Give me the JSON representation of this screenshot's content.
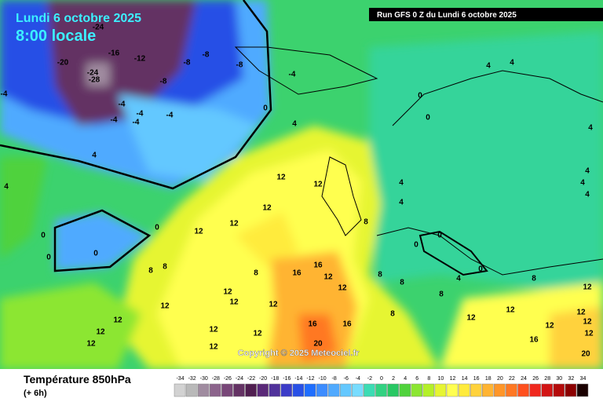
{
  "header": {
    "date": "Lundi 6 octobre 2025",
    "time": "8:00 locale",
    "run": "Run GFS 0 Z du Lundi 6 octobre 2025"
  },
  "copyright": "Copyright © 2025 Meteociel.fr",
  "legend": {
    "title": "Température 850hPa",
    "subtitle": "(+ 6h)",
    "scale": [
      -34,
      -32,
      -30,
      -28,
      -26,
      -24,
      -22,
      -20,
      -18,
      -16,
      -14,
      -12,
      -10,
      -8,
      -6,
      -4,
      -2,
      0,
      2,
      4,
      6,
      8,
      10,
      12,
      14,
      16,
      18,
      20,
      22,
      24,
      26,
      28,
      30,
      32,
      34
    ],
    "colors": [
      "#d2d2d2",
      "#b9b9b9",
      "#a08ca0",
      "#8c648c",
      "#784678",
      "#643264",
      "#501e50",
      "#5a2878",
      "#50329b",
      "#3c3cc8",
      "#2850e6",
      "#1e6eff",
      "#3c8cff",
      "#50aaff",
      "#64c8ff",
      "#78dcff",
      "#3cdcb4",
      "#32d282",
      "#28c864",
      "#50d23c",
      "#8ce632",
      "#b4f028",
      "#e6f532",
      "#ffff50",
      "#ffeb3c",
      "#ffd23c",
      "#ffb432",
      "#ff9628",
      "#ff7823",
      "#ff501e",
      "#f0281e",
      "#d21414",
      "#b40a0a",
      "#8c0000",
      "#1a0000"
    ]
  },
  "contour_labels": [
    "-24",
    "-16",
    "-12",
    "-20",
    "-24",
    "-28",
    "-8",
    "-8",
    "-8",
    "-8",
    "-4",
    "-4",
    "-4",
    "-4",
    "-4",
    "-4",
    "-4",
    "0",
    "4",
    "4",
    "0",
    "4",
    "4",
    "4",
    "4",
    "4",
    "4",
    "0",
    "12",
    "12",
    "12",
    "12",
    "12",
    "0",
    "0",
    "0",
    "0",
    "8",
    "8",
    "8",
    "16",
    "16",
    "12",
    "12",
    "8",
    "8",
    "4",
    "4",
    "8",
    "0",
    "0",
    "0",
    "4",
    "8",
    "8",
    "12",
    "12",
    "8",
    "12",
    "12",
    "12",
    "12",
    "12",
    "16",
    "12",
    "12",
    "12",
    "12",
    "12",
    "12",
    "12",
    "12",
    "12",
    "12",
    "16",
    "16",
    "20",
    "20",
    "4"
  ]
}
